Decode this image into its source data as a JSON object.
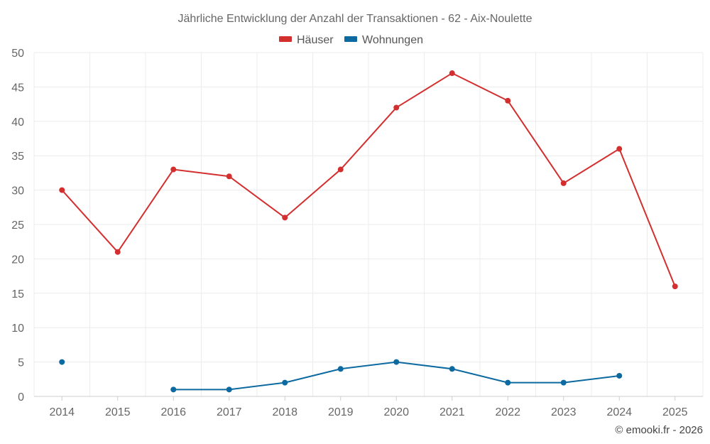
{
  "chart_data": {
    "type": "line",
    "title": "Jährliche Entwicklung der Anzahl der Transaktionen - 62 - Aix-Noulette",
    "categories": [
      "2014",
      "2015",
      "2016",
      "2017",
      "2018",
      "2019",
      "2020",
      "2021",
      "2022",
      "2023",
      "2024",
      "2025"
    ],
    "ylim": [
      0,
      50
    ],
    "yticks": [
      0,
      5,
      10,
      15,
      20,
      25,
      30,
      35,
      40,
      45,
      50
    ],
    "grid": true,
    "legend_position": "top-center",
    "series": [
      {
        "name": "Häuser",
        "color": "#d32f2f",
        "values": [
          30,
          21,
          33,
          32,
          26,
          33,
          42,
          47,
          43,
          31,
          36,
          16
        ]
      },
      {
        "name": "Wohnungen",
        "color": "#0d6aa0",
        "values": [
          5,
          null,
          1,
          1,
          2,
          4,
          5,
          4,
          2,
          2,
          3,
          null
        ]
      }
    ],
    "credit": "© emooki.fr - 2026"
  }
}
